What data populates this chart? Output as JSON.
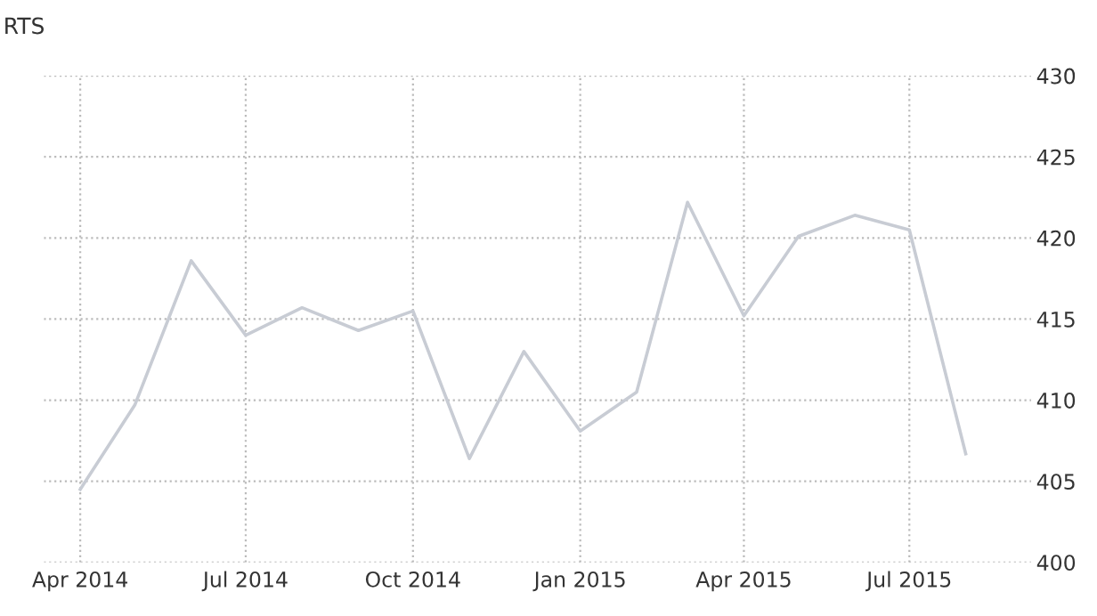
{
  "chart_data": {
    "type": "line",
    "title": "RTS",
    "x": [
      "2014-04-01",
      "2014-05-01",
      "2014-06-01",
      "2014-07-01",
      "2014-08-01",
      "2014-09-01",
      "2014-10-01",
      "2014-11-01",
      "2014-12-01",
      "2015-01-01",
      "2015-02-01",
      "2015-03-01",
      "2015-04-01",
      "2015-05-01",
      "2015-06-01",
      "2015-07-01",
      "2015-08-01"
    ],
    "series": [
      {
        "color": "#c8ccd4",
        "values": [
          404.5,
          409.7,
          418.6,
          414.0,
          415.7,
          414.3,
          415.5,
          406.4,
          413.0,
          408.1,
          410.5,
          422.2,
          415.2,
          420.1,
          421.4,
          420.5,
          406.7
        ]
      }
    ],
    "xlim": [
      "2014-03-12",
      "2015-09-06"
    ],
    "xticks": [
      {
        "value": "2014-04-01",
        "label": "Apr 2014"
      },
      {
        "value": "2014-07-01",
        "label": "Jul 2014"
      },
      {
        "value": "2014-10-01",
        "label": "Oct 2014"
      },
      {
        "value": "2015-01-01",
        "label": "Jan 2015"
      },
      {
        "value": "2015-04-01",
        "label": "Apr 2015"
      },
      {
        "value": "2015-07-01",
        "label": "Jul 2015"
      }
    ],
    "ylim": [
      400,
      430
    ],
    "yticks": [
      400,
      405,
      410,
      415,
      420,
      425,
      430
    ],
    "grid": true,
    "marker": "none",
    "line_style": "solid"
  }
}
